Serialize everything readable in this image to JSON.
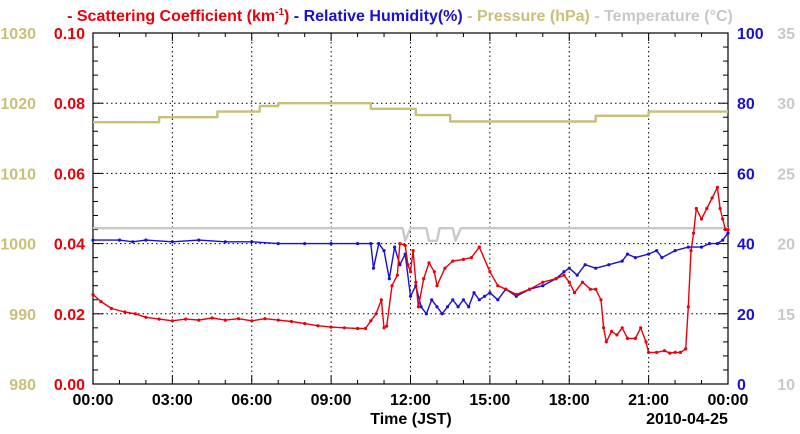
{
  "chart_data": {
    "type": "line",
    "date_label": "2010-04-25",
    "xlabel": "Time (JST)",
    "x_ticks": [
      "00:00",
      "03:00",
      "06:00",
      "09:00",
      "12:00",
      "15:00",
      "18:00",
      "21:00",
      "00:00"
    ],
    "xlim_hours": [
      0,
      24
    ],
    "legend": [
      {
        "text": "- Scattering Coefficient (km",
        "sup": "-1",
        "tail": ")",
        "color": "#e8000b"
      },
      {
        "text": "- Relative Humidity(%)",
        "color": "#1a10d0"
      },
      {
        "text": "- Pressure (hPa)",
        "color": "#c9bf78"
      },
      {
        "text": "- Temperature (°C)",
        "color": "#c8c8c8"
      }
    ],
    "axes": {
      "pressure": {
        "ticks": [
          "980",
          "990",
          "1000",
          "1010",
          "1020",
          "1030"
        ],
        "range": [
          980,
          1030
        ],
        "color": "#c9bf78"
      },
      "scattering": {
        "ticks": [
          "0.00",
          "0.02",
          "0.04",
          "0.06",
          "0.08",
          "0.10"
        ],
        "range": [
          0,
          0.1
        ],
        "color": "#e8000b"
      },
      "humidity": {
        "ticks": [
          "0",
          "20",
          "40",
          "60",
          "80",
          "100"
        ],
        "range": [
          0,
          100
        ],
        "color": "#1a10d0"
      },
      "temperature": {
        "ticks": [
          "10",
          "15",
          "20",
          "25",
          "30",
          "35"
        ],
        "range": [
          10,
          35
        ],
        "color": "#c8c8c8"
      }
    },
    "series": [
      {
        "name": "Pressure",
        "axis": "pressure",
        "color": "#c9bf78",
        "points": [
          [
            0,
            1017.3
          ],
          [
            2.5,
            1017.3
          ],
          [
            2.5,
            1018.0
          ],
          [
            4.7,
            1018.0
          ],
          [
            4.7,
            1018.8
          ],
          [
            6.3,
            1018.8
          ],
          [
            6.3,
            1019.6
          ],
          [
            7.0,
            1019.6
          ],
          [
            7.0,
            1020.0
          ],
          [
            10.5,
            1020.0
          ],
          [
            10.5,
            1019.2
          ],
          [
            12.2,
            1019.2
          ],
          [
            12.2,
            1018.3
          ],
          [
            13.5,
            1018.3
          ],
          [
            13.5,
            1017.4
          ],
          [
            19.0,
            1017.4
          ],
          [
            19.0,
            1018.2
          ],
          [
            21.0,
            1018.2
          ],
          [
            21.0,
            1018.8
          ],
          [
            24,
            1018.8
          ]
        ]
      },
      {
        "name": "Temperature",
        "axis": "temperature",
        "color": "#c8c8c8",
        "points": [
          [
            0,
            21.1
          ],
          [
            11.7,
            21.1
          ],
          [
            11.8,
            20.2
          ],
          [
            12.0,
            21.1
          ],
          [
            12.6,
            21.1
          ],
          [
            12.7,
            20.2
          ],
          [
            13.0,
            20.2
          ],
          [
            13.1,
            21.1
          ],
          [
            13.6,
            21.1
          ],
          [
            13.7,
            20.2
          ],
          [
            13.9,
            21.1
          ],
          [
            24,
            21.1
          ]
        ]
      },
      {
        "name": "Relative Humidity",
        "axis": "humidity",
        "color": "#1a10d0",
        "points": [
          [
            0,
            41
          ],
          [
            1,
            41
          ],
          [
            1.5,
            40.5
          ],
          [
            2,
            41
          ],
          [
            3,
            40.5
          ],
          [
            4,
            41
          ],
          [
            5,
            40.5
          ],
          [
            6,
            40.5
          ],
          [
            7,
            40
          ],
          [
            8,
            40
          ],
          [
            9,
            40
          ],
          [
            10,
            40
          ],
          [
            10.5,
            40
          ],
          [
            10.6,
            33
          ],
          [
            10.8,
            40
          ],
          [
            11.0,
            38
          ],
          [
            11.2,
            30
          ],
          [
            11.4,
            39
          ],
          [
            11.6,
            34
          ],
          [
            11.8,
            37
          ],
          [
            12.0,
            25
          ],
          [
            12.2,
            28
          ],
          [
            12.4,
            22
          ],
          [
            12.6,
            20
          ],
          [
            12.8,
            24
          ],
          [
            13.0,
            22
          ],
          [
            13.2,
            20
          ],
          [
            13.4,
            22
          ],
          [
            13.6,
            24
          ],
          [
            13.8,
            22
          ],
          [
            14.0,
            24
          ],
          [
            14.2,
            22
          ],
          [
            14.4,
            26
          ],
          [
            14.6,
            24
          ],
          [
            14.8,
            25
          ],
          [
            15.0,
            26
          ],
          [
            15.3,
            24
          ],
          [
            15.6,
            27
          ],
          [
            16.0,
            25
          ],
          [
            16.5,
            27
          ],
          [
            17.0,
            28
          ],
          [
            17.5,
            30
          ],
          [
            17.8,
            32
          ],
          [
            18.0,
            33
          ],
          [
            18.3,
            31
          ],
          [
            18.6,
            34
          ],
          [
            19.0,
            33
          ],
          [
            19.5,
            34
          ],
          [
            20.0,
            35
          ],
          [
            20.2,
            37
          ],
          [
            20.5,
            36
          ],
          [
            21.0,
            37
          ],
          [
            21.3,
            38
          ],
          [
            21.5,
            36
          ],
          [
            22.0,
            38
          ],
          [
            22.5,
            39
          ],
          [
            23.0,
            39
          ],
          [
            23.3,
            40
          ],
          [
            23.6,
            40
          ],
          [
            23.8,
            41
          ],
          [
            24,
            43
          ]
        ]
      },
      {
        "name": "Scattering Coefficient",
        "axis": "scattering",
        "color": "#e8000b",
        "points": [
          [
            0,
            0.0255
          ],
          [
            0.3,
            0.0235
          ],
          [
            0.7,
            0.0215
          ],
          [
            1.2,
            0.0205
          ],
          [
            1.6,
            0.02
          ],
          [
            2.0,
            0.019
          ],
          [
            2.5,
            0.0185
          ],
          [
            3.0,
            0.018
          ],
          [
            3.5,
            0.0185
          ],
          [
            4.0,
            0.0182
          ],
          [
            4.5,
            0.0188
          ],
          [
            5.0,
            0.0182
          ],
          [
            5.5,
            0.0186
          ],
          [
            6.0,
            0.018
          ],
          [
            6.5,
            0.0186
          ],
          [
            7.0,
            0.0182
          ],
          [
            7.5,
            0.0178
          ],
          [
            8.0,
            0.0172
          ],
          [
            8.5,
            0.0166
          ],
          [
            9.0,
            0.0162
          ],
          [
            9.5,
            0.016
          ],
          [
            10.0,
            0.0158
          ],
          [
            10.3,
            0.0158
          ],
          [
            10.5,
            0.018
          ],
          [
            10.7,
            0.02
          ],
          [
            10.9,
            0.024
          ],
          [
            11.0,
            0.016
          ],
          [
            11.1,
            0.0165
          ],
          [
            11.3,
            0.028
          ],
          [
            11.5,
            0.031
          ],
          [
            11.6,
            0.04
          ],
          [
            11.8,
            0.0395
          ],
          [
            11.9,
            0.034
          ],
          [
            12.0,
            0.032
          ],
          [
            12.1,
            0.038
          ],
          [
            12.2,
            0.029
          ],
          [
            12.3,
            0.022
          ],
          [
            12.5,
            0.03
          ],
          [
            12.7,
            0.0345
          ],
          [
            12.9,
            0.032
          ],
          [
            13.0,
            0.028
          ],
          [
            13.3,
            0.033
          ],
          [
            13.6,
            0.035
          ],
          [
            14.0,
            0.0355
          ],
          [
            14.3,
            0.036
          ],
          [
            14.6,
            0.039
          ],
          [
            15.0,
            0.032
          ],
          [
            15.3,
            0.028
          ],
          [
            15.6,
            0.027
          ],
          [
            16.0,
            0.0255
          ],
          [
            16.5,
            0.027
          ],
          [
            17.0,
            0.029
          ],
          [
            17.5,
            0.03
          ],
          [
            17.8,
            0.031
          ],
          [
            18.0,
            0.029
          ],
          [
            18.2,
            0.026
          ],
          [
            18.5,
            0.029
          ],
          [
            18.8,
            0.027
          ],
          [
            19.0,
            0.027
          ],
          [
            19.2,
            0.024
          ],
          [
            19.3,
            0.016
          ],
          [
            19.4,
            0.012
          ],
          [
            19.6,
            0.015
          ],
          [
            19.8,
            0.014
          ],
          [
            20.0,
            0.016
          ],
          [
            20.2,
            0.013
          ],
          [
            20.5,
            0.013
          ],
          [
            20.7,
            0.016
          ],
          [
            20.9,
            0.012
          ],
          [
            21.0,
            0.009
          ],
          [
            21.3,
            0.009
          ],
          [
            21.6,
            0.0095
          ],
          [
            21.8,
            0.0088
          ],
          [
            22.0,
            0.009
          ],
          [
            22.2,
            0.009
          ],
          [
            22.4,
            0.01
          ],
          [
            22.5,
            0.022
          ],
          [
            22.6,
            0.038
          ],
          [
            22.7,
            0.043
          ],
          [
            22.8,
            0.05
          ],
          [
            23.0,
            0.047
          ],
          [
            23.2,
            0.05
          ],
          [
            23.4,
            0.053
          ],
          [
            23.6,
            0.056
          ],
          [
            23.7,
            0.05
          ],
          [
            23.8,
            0.047
          ],
          [
            23.9,
            0.044
          ],
          [
            24,
            0.044
          ]
        ]
      }
    ]
  }
}
